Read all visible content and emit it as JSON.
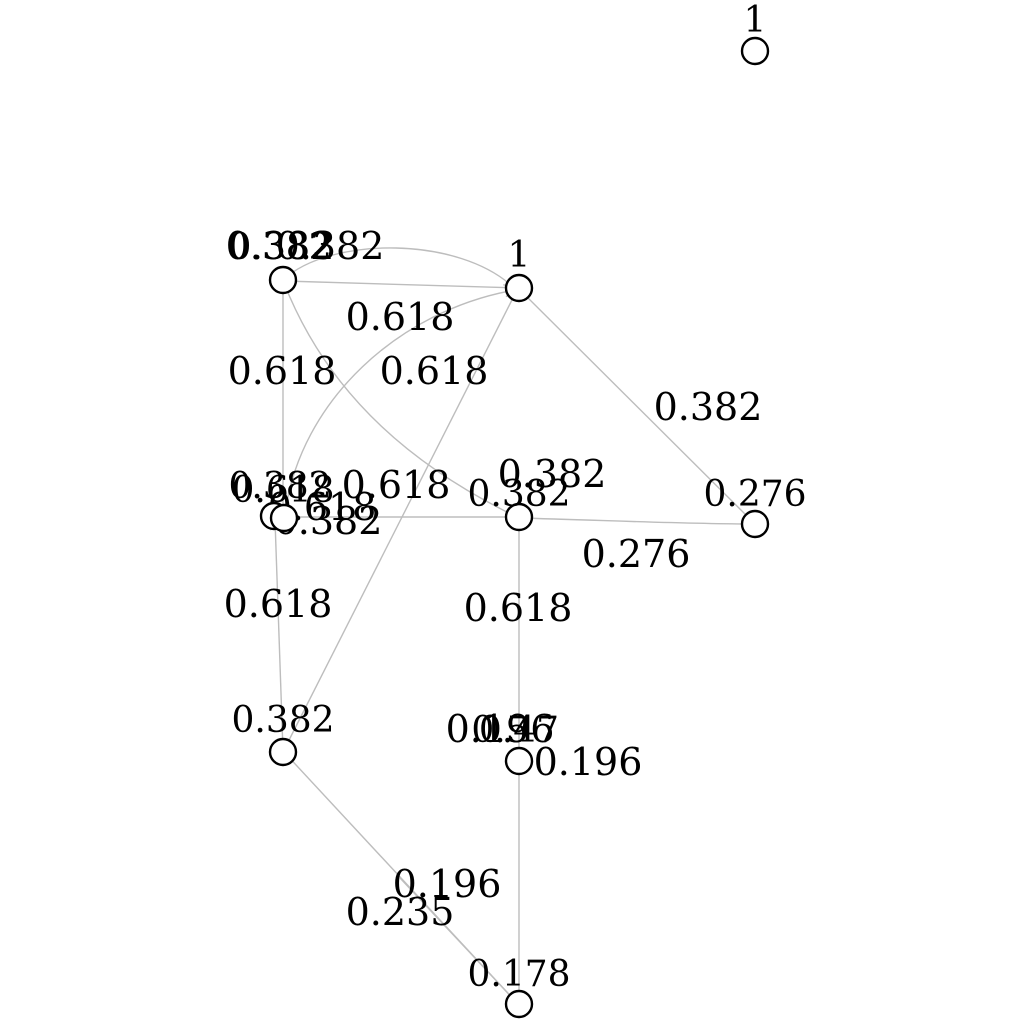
{
  "graph": {
    "directed": true,
    "node_style": {
      "shape": "circle",
      "fill": "#ffffff",
      "stroke": "#000000"
    },
    "edge_color": "#bdbdbd",
    "label_color": "#000000",
    "nodes": [
      {
        "id": "n1",
        "label": "1"
      },
      {
        "id": "n2",
        "label": "0.382"
      },
      {
        "id": "n3",
        "label": "0.382"
      },
      {
        "id": "n4",
        "label": "1"
      },
      {
        "id": "n5",
        "label": "0.618"
      },
      {
        "id": "n6",
        "label": "0.382"
      },
      {
        "id": "n7",
        "label": "0.276"
      },
      {
        "id": "n8",
        "label": "0.382"
      },
      {
        "id": "n9",
        "label": "0.47"
      },
      {
        "id": "n10",
        "label": "0.5"
      },
      {
        "id": "n11",
        "label": "0.178"
      }
    ],
    "edges": [
      {
        "from": "n2",
        "to": "n4",
        "label": "0.382"
      },
      {
        "from": "n4",
        "to": "n2",
        "label": "0.382"
      },
      {
        "from": "n5",
        "to": "n2",
        "label": "0.618"
      },
      {
        "from": "n5",
        "to": "n4",
        "label": "0.618"
      },
      {
        "from": "n8",
        "to": "n4",
        "label": "0.618"
      },
      {
        "from": "n6",
        "to": "n2",
        "label": "0.382"
      },
      {
        "from": "n5",
        "to": "n6",
        "label": "0.618"
      },
      {
        "from": "n8",
        "to": "n5",
        "label": "0.618"
      },
      {
        "from": "n4",
        "to": "n7",
        "label": "0.382"
      },
      {
        "from": "n6",
        "to": "n7",
        "label": "0.276"
      },
      {
        "from": "n9",
        "to": "n6",
        "label": "0.618"
      },
      {
        "from": "n11",
        "to": "n9",
        "label": "0.196"
      },
      {
        "from": "n11",
        "to": "n8",
        "label": "0.235"
      },
      {
        "from": "n11",
        "to": "n8",
        "label": "0.196"
      },
      {
        "from": "n9",
        "to": "n10",
        "label": "0.196"
      },
      {
        "from": "n5",
        "to": "n5",
        "label": "0.382"
      },
      {
        "from": "n5",
        "to": "n5",
        "label": "0.618"
      }
    ]
  }
}
